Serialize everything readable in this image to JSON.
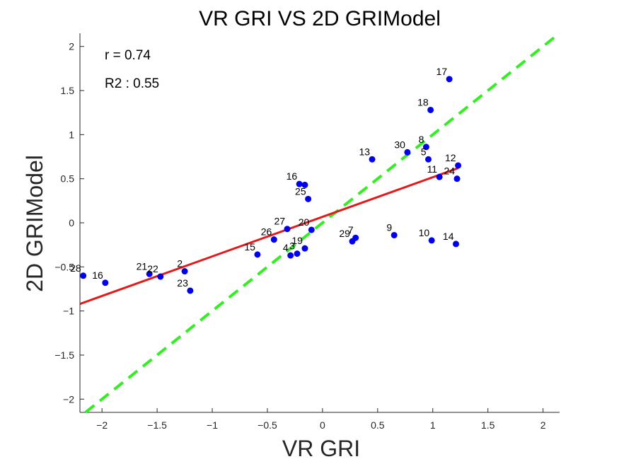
{
  "chart_data": {
    "type": "scatter",
    "title": "VR GRI VS 2D GRIModel",
    "xlabel": "VR GRI",
    "ylabel": "2D GRIModel",
    "xlim": [
      -2.2,
      2.15
    ],
    "ylim": [
      -2.15,
      2.15
    ],
    "xticks": [
      -2,
      -1.5,
      -1,
      -0.5,
      0,
      0.5,
      1,
      1.5,
      2
    ],
    "xtick_labels": [
      "−2",
      "−1.5",
      "−1",
      "−0.5",
      "0",
      "0.5",
      "1",
      "1.5",
      "2"
    ],
    "yticks": [
      -2,
      -1.5,
      -1,
      -0.5,
      0,
      0.5,
      1,
      1.5,
      2
    ],
    "ytick_labels": [
      "−2",
      "−1.5",
      "−1",
      "−0.5",
      "0",
      "0.5",
      "1",
      "1.5",
      "2"
    ],
    "annotations": [
      "r = 0.74",
      "R2 : 0.55"
    ],
    "grid": false,
    "colors": {
      "points": "#0000ee",
      "fit_line": "#e31a1c",
      "identity_line": "#33ee22",
      "axis": "#262626"
    },
    "points": [
      {
        "label": "28",
        "x": -2.17,
        "y": -0.6
      },
      {
        "label": "16",
        "x": -1.97,
        "y": -0.68
      },
      {
        "label": "21",
        "x": -1.57,
        "y": -0.58
      },
      {
        "label": "22",
        "x": -1.47,
        "y": -0.61
      },
      {
        "label": "2",
        "x": -1.25,
        "y": -0.55
      },
      {
        "label": "23",
        "x": -1.2,
        "y": -0.77
      },
      {
        "label": "15",
        "x": -0.59,
        "y": -0.36
      },
      {
        "label": "26",
        "x": -0.44,
        "y": -0.19
      },
      {
        "label": "27",
        "x": -0.32,
        "y": -0.07
      },
      {
        "label": "4",
        "x": -0.29,
        "y": -0.37
      },
      {
        "label": "3",
        "x": -0.23,
        "y": -0.35
      },
      {
        "label": "19",
        "x": -0.16,
        "y": -0.29
      },
      {
        "label": "20",
        "x": -0.1,
        "y": -0.08
      },
      {
        "label": "16",
        "x": -0.21,
        "y": 0.44
      },
      {
        "label": "",
        "x": -0.16,
        "y": 0.43
      },
      {
        "label": "25",
        "x": -0.13,
        "y": 0.27
      },
      {
        "label": "29",
        "x": 0.27,
        "y": -0.21
      },
      {
        "label": "7",
        "x": 0.3,
        "y": -0.17
      },
      {
        "label": "9",
        "x": 0.65,
        "y": -0.14
      },
      {
        "label": "10",
        "x": 0.99,
        "y": -0.2
      },
      {
        "label": "14",
        "x": 1.21,
        "y": -0.24
      },
      {
        "label": "13",
        "x": 0.45,
        "y": 0.72
      },
      {
        "label": "30",
        "x": 0.77,
        "y": 0.8
      },
      {
        "label": "8",
        "x": 0.94,
        "y": 0.86
      },
      {
        "label": "5",
        "x": 0.96,
        "y": 0.72
      },
      {
        "label": "11",
        "x": 1.06,
        "y": 0.52
      },
      {
        "label": "24",
        "x": 1.22,
        "y": 0.5
      },
      {
        "label": "12",
        "x": 1.23,
        "y": 0.65
      },
      {
        "label": "18",
        "x": 0.98,
        "y": 1.28
      },
      {
        "label": "17",
        "x": 1.15,
        "y": 1.63
      }
    ],
    "fit_line": {
      "x": [
        -2.2,
        1.23
      ],
      "y": [
        -0.92,
        0.62
      ]
    },
    "identity_line": {
      "x": [
        -2.2,
        2.15
      ],
      "y": [
        -2.2,
        2.15
      ]
    }
  }
}
